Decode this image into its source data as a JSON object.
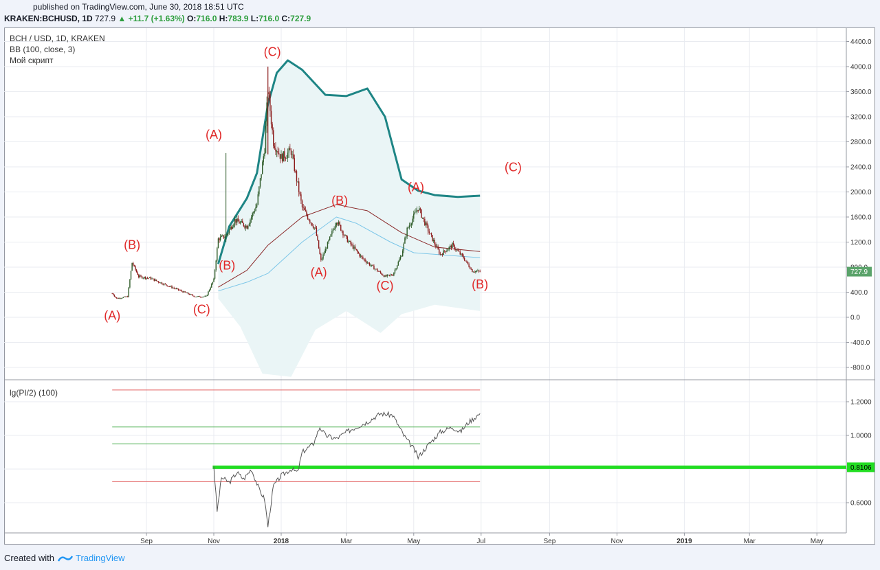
{
  "header": {
    "published": "published on TradingView.com, June 30, 2018 18:51 UTC",
    "symbol": "KRAKEN:BCHUSD, 1D",
    "last": "727.9",
    "change": "▲ +11.7 (+1.63%)",
    "o_label": "O:",
    "o_val": "716.0",
    "h_label": "H:",
    "h_val": "783.9",
    "l_label": "L:",
    "l_val": "716.0",
    "c_label": "C:",
    "c_val": "727.9"
  },
  "legend": {
    "line1": "BCH / USD, 1D, KRAKEN",
    "line2": "BB (100, close, 3)",
    "line3": "Мой скрипт",
    "sub": "lg(PI/2) (100)"
  },
  "footer": {
    "created": "Created with",
    "brand": "TradingView"
  },
  "colors": {
    "upper_band": "#1e8585",
    "basis": "#8b2a2a",
    "lower_band": "#7cc6e8",
    "band_fill": "#eaf5f6",
    "candle_up": "#2d5a27",
    "candle_down": "#8b1a1a",
    "wave_label": "#e02828",
    "highlight": "#22dd22",
    "price_tag": "#5aa36a"
  },
  "chart_data": [
    {
      "type": "candlestick",
      "title": "BCH / USD, 1D, KRAKEN",
      "y_ticks": [
        "4400.0",
        "4000.0",
        "3600.0",
        "3200.0",
        "2800.0",
        "2400.0",
        "2000.0",
        "1600.0",
        "1200.0",
        "800.0",
        "400.0",
        "0.0",
        "-400.0",
        "-800.0"
      ],
      "ylim": [
        -1000,
        4500
      ],
      "x_ticks": [
        "Sep",
        "Nov",
        "2018",
        "Mar",
        "May",
        "Jul",
        "Sep",
        "Nov",
        "2019",
        "Mar",
        "May"
      ],
      "x_tick_dates": [
        "2017-09-01",
        "2017-11-01",
        "2018-01-01",
        "2018-03-01",
        "2018-05-01",
        "2018-07-01",
        "2018-09-01",
        "2018-11-01",
        "2019-01-01",
        "2019-03-01",
        "2019-05-01"
      ],
      "last_price": "727.9",
      "price_series": [
        {
          "d": "2017-08-01",
          "v": 380
        },
        {
          "d": "2017-08-05",
          "v": 300
        },
        {
          "d": "2017-08-15",
          "v": 330
        },
        {
          "d": "2017-08-19",
          "v": 870
        },
        {
          "d": "2017-08-25",
          "v": 650
        },
        {
          "d": "2017-09-05",
          "v": 620
        },
        {
          "d": "2017-09-18",
          "v": 520
        },
        {
          "d": "2017-10-01",
          "v": 430
        },
        {
          "d": "2017-10-15",
          "v": 330
        },
        {
          "d": "2017-10-25",
          "v": 330
        },
        {
          "d": "2017-11-01",
          "v": 600
        },
        {
          "d": "2017-11-05",
          "v": 1250
        },
        {
          "d": "2017-11-12",
          "v": 1300
        },
        {
          "d": "2017-11-20",
          "v": 1550
        },
        {
          "d": "2017-12-01",
          "v": 1450
        },
        {
          "d": "2017-12-10",
          "v": 1800
        },
        {
          "d": "2017-12-17",
          "v": 2700
        },
        {
          "d": "2017-12-20",
          "v": 3650
        },
        {
          "d": "2017-12-25",
          "v": 2800
        },
        {
          "d": "2018-01-01",
          "v": 2550
        },
        {
          "d": "2018-01-10",
          "v": 2650
        },
        {
          "d": "2018-01-20",
          "v": 1750
        },
        {
          "d": "2018-02-01",
          "v": 1400
        },
        {
          "d": "2018-02-06",
          "v": 900
        },
        {
          "d": "2018-02-15",
          "v": 1300
        },
        {
          "d": "2018-02-20",
          "v": 1550
        },
        {
          "d": "2018-03-01",
          "v": 1250
        },
        {
          "d": "2018-03-15",
          "v": 950
        },
        {
          "d": "2018-03-25",
          "v": 800
        },
        {
          "d": "2018-04-05",
          "v": 650
        },
        {
          "d": "2018-04-12",
          "v": 680
        },
        {
          "d": "2018-04-20",
          "v": 1000
        },
        {
          "d": "2018-04-25",
          "v": 1400
        },
        {
          "d": "2018-05-05",
          "v": 1750
        },
        {
          "d": "2018-05-15",
          "v": 1350
        },
        {
          "d": "2018-05-25",
          "v": 1000
        },
        {
          "d": "2018-06-05",
          "v": 1150
        },
        {
          "d": "2018-06-15",
          "v": 950
        },
        {
          "d": "2018-06-23",
          "v": 740
        },
        {
          "d": "2018-06-30",
          "v": 727.9
        }
      ],
      "bb_upper": [
        {
          "d": "2017-11-05",
          "v": 850
        },
        {
          "d": "2017-11-15",
          "v": 1450
        },
        {
          "d": "2017-12-01",
          "v": 1900
        },
        {
          "d": "2017-12-10",
          "v": 2300
        },
        {
          "d": "2017-12-20",
          "v": 3400
        },
        {
          "d": "2017-12-28",
          "v": 3900
        },
        {
          "d": "2018-01-07",
          "v": 4100
        },
        {
          "d": "2018-01-20",
          "v": 3950
        },
        {
          "d": "2018-02-10",
          "v": 3550
        },
        {
          "d": "2018-03-01",
          "v": 3530
        },
        {
          "d": "2018-03-20",
          "v": 3650
        },
        {
          "d": "2018-04-05",
          "v": 3200
        },
        {
          "d": "2018-04-20",
          "v": 2200
        },
        {
          "d": "2018-05-05",
          "v": 2020
        },
        {
          "d": "2018-05-20",
          "v": 1950
        },
        {
          "d": "2018-06-10",
          "v": 1920
        },
        {
          "d": "2018-06-30",
          "v": 1940
        }
      ],
      "bb_basis": [
        {
          "d": "2017-11-05",
          "v": 480
        },
        {
          "d": "2017-12-01",
          "v": 750
        },
        {
          "d": "2017-12-20",
          "v": 1150
        },
        {
          "d": "2018-01-20",
          "v": 1600
        },
        {
          "d": "2018-02-20",
          "v": 1800
        },
        {
          "d": "2018-03-20",
          "v": 1700
        },
        {
          "d": "2018-04-20",
          "v": 1350
        },
        {
          "d": "2018-05-20",
          "v": 1120
        },
        {
          "d": "2018-06-30",
          "v": 1050
        }
      ],
      "bb_lower": [
        {
          "d": "2017-11-05",
          "v": 420
        },
        {
          "d": "2017-12-01",
          "v": 560
        },
        {
          "d": "2017-12-20",
          "v": 700
        },
        {
          "d": "2018-01-20",
          "v": 1200
        },
        {
          "d": "2018-02-20",
          "v": 1600
        },
        {
          "d": "2018-03-10",
          "v": 1500
        },
        {
          "d": "2018-04-10",
          "v": 1200
        },
        {
          "d": "2018-05-01",
          "v": 1030
        },
        {
          "d": "2018-06-30",
          "v": 950
        }
      ],
      "wave_labels": [
        {
          "text": "(A)",
          "d": "2017-08-01",
          "v": -40
        },
        {
          "text": "(B)",
          "d": "2017-08-19",
          "v": 1090
        },
        {
          "text": "(C)",
          "d": "2017-10-21",
          "v": 60
        },
        {
          "text": "(A)",
          "d": "2017-11-01",
          "v": 2850
        },
        {
          "text": "(B)",
          "d": "2017-11-13",
          "v": 760
        },
        {
          "text": "(C)",
          "d": "2017-12-24",
          "v": 4170
        },
        {
          "text": "(A)",
          "d": "2018-02-04",
          "v": 650
        },
        {
          "text": "(B)",
          "d": "2018-02-23",
          "v": 1800
        },
        {
          "text": "(C)",
          "d": "2018-04-05",
          "v": 440
        },
        {
          "text": "(A)",
          "d": "2018-05-03",
          "v": 2010
        },
        {
          "text": "(B)",
          "d": "2018-06-30",
          "v": 460
        },
        {
          "text": "(C)",
          "d": "2018-07-30",
          "v": 2330
        }
      ]
    },
    {
      "type": "line",
      "title": "lg(PI/2) (100)",
      "y_ticks": [
        "1.2000",
        "1.0000",
        "0.8000",
        "0.6000"
      ],
      "ylim": [
        0.43,
        1.32
      ],
      "levels": [
        1.27,
        1.05,
        0.95,
        0.725
      ],
      "highlight_level": 0.8106,
      "highlight_label": "0.8106",
      "series": [
        {
          "d": "2017-11-01",
          "v": 0.82
        },
        {
          "d": "2017-11-04",
          "v": 0.55
        },
        {
          "d": "2017-11-08",
          "v": 0.75
        },
        {
          "d": "2017-11-15",
          "v": 0.72
        },
        {
          "d": "2017-11-22",
          "v": 0.78
        },
        {
          "d": "2017-11-28",
          "v": 0.74
        },
        {
          "d": "2017-12-05",
          "v": 0.8
        },
        {
          "d": "2017-12-12",
          "v": 0.68
        },
        {
          "d": "2017-12-17",
          "v": 0.62
        },
        {
          "d": "2017-12-20",
          "v": 0.46
        },
        {
          "d": "2017-12-25",
          "v": 0.7
        },
        {
          "d": "2018-01-01",
          "v": 0.76
        },
        {
          "d": "2018-01-10",
          "v": 0.8
        },
        {
          "d": "2018-01-16",
          "v": 0.78
        },
        {
          "d": "2018-01-20",
          "v": 0.9
        },
        {
          "d": "2018-01-30",
          "v": 0.95
        },
        {
          "d": "2018-02-05",
          "v": 1.05
        },
        {
          "d": "2018-02-10",
          "v": 1.0
        },
        {
          "d": "2018-02-20",
          "v": 0.98
        },
        {
          "d": "2018-03-01",
          "v": 1.02
        },
        {
          "d": "2018-03-10",
          "v": 1.05
        },
        {
          "d": "2018-03-20",
          "v": 1.08
        },
        {
          "d": "2018-04-01",
          "v": 1.13
        },
        {
          "d": "2018-04-12",
          "v": 1.12
        },
        {
          "d": "2018-04-22",
          "v": 1.0
        },
        {
          "d": "2018-05-01",
          "v": 0.92
        },
        {
          "d": "2018-05-05",
          "v": 0.87
        },
        {
          "d": "2018-05-15",
          "v": 0.95
        },
        {
          "d": "2018-05-25",
          "v": 1.02
        },
        {
          "d": "2018-06-05",
          "v": 1.05
        },
        {
          "d": "2018-06-12",
          "v": 1.02
        },
        {
          "d": "2018-06-20",
          "v": 1.08
        },
        {
          "d": "2018-06-30",
          "v": 1.13
        }
      ]
    }
  ]
}
